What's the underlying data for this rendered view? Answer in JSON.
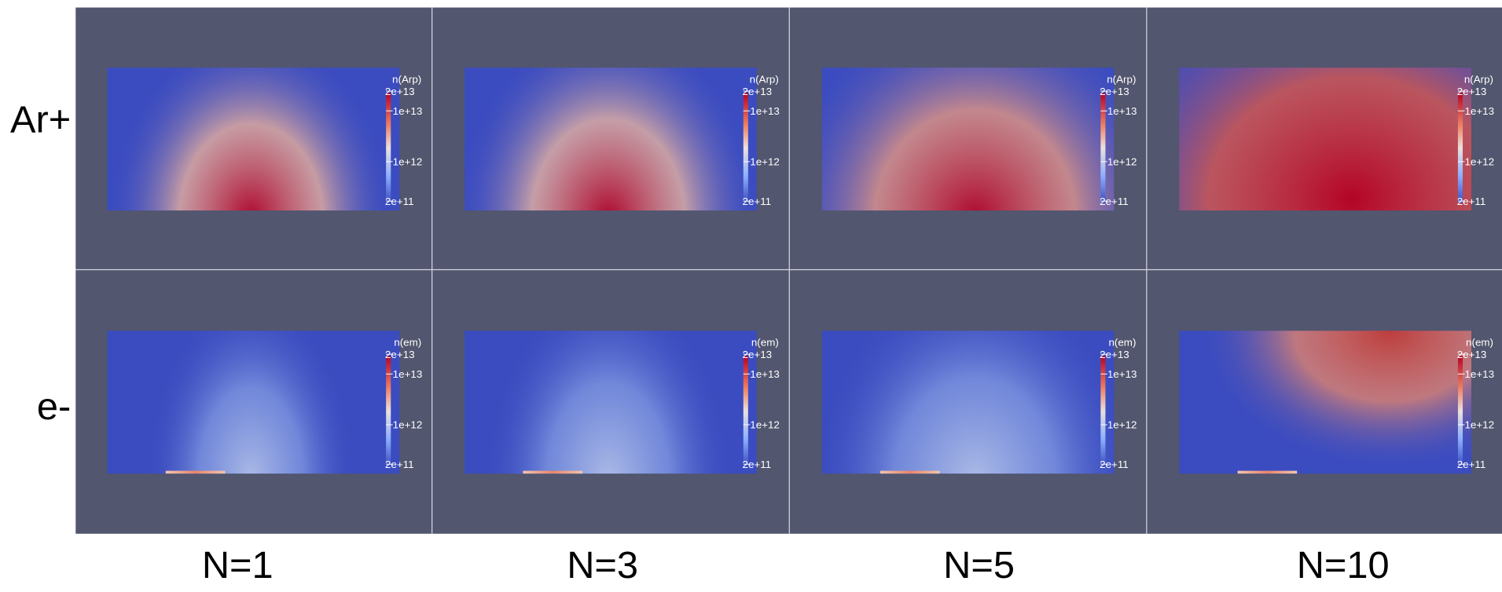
{
  "rows": [
    {
      "label": "Ar+",
      "colorbar_title": "n(Arp)"
    },
    {
      "label": "e-",
      "colorbar_title": "n(em)"
    }
  ],
  "columns": [
    "N=1",
    "N=3",
    "N=5",
    "N=10"
  ],
  "colorbar_ticks": [
    "2e+13",
    "1e+13",
    "1e+12",
    "2e+11"
  ]
}
